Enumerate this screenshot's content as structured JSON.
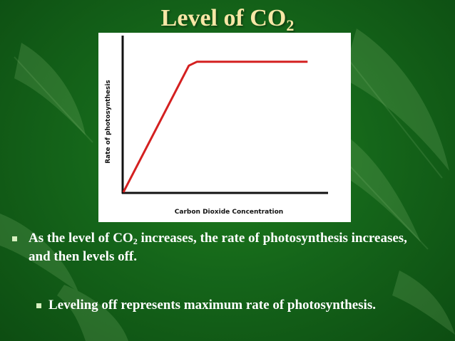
{
  "slide": {
    "title_text": "Level of CO",
    "title_sub": "2"
  },
  "chart_data": {
    "type": "line",
    "xlabel": "Carbon Dioxide Concentration",
    "ylabel": "Rate of photosynthesis",
    "series": [
      {
        "color": "#d42020",
        "points": [
          [
            0,
            0
          ],
          [
            0.32,
            0.97
          ],
          [
            0.36,
            1
          ],
          [
            0.9,
            1
          ]
        ]
      }
    ],
    "xlim": [
      0,
      1
    ],
    "ylim": [
      0,
      1.2
    ],
    "grid": false,
    "legend": "none"
  },
  "bullets": {
    "b1_before_sub": "As the level of CO",
    "b1_sub": "2",
    "b1_after_sub": " increases, the rate of photosynthesis increases, and then levels off.",
    "b2_text": "Leveling off represents maximum rate of photosynthesis."
  },
  "colors": {
    "title": "#f7e7a6",
    "background": "#1a6e1c",
    "curve": "#d42020"
  }
}
